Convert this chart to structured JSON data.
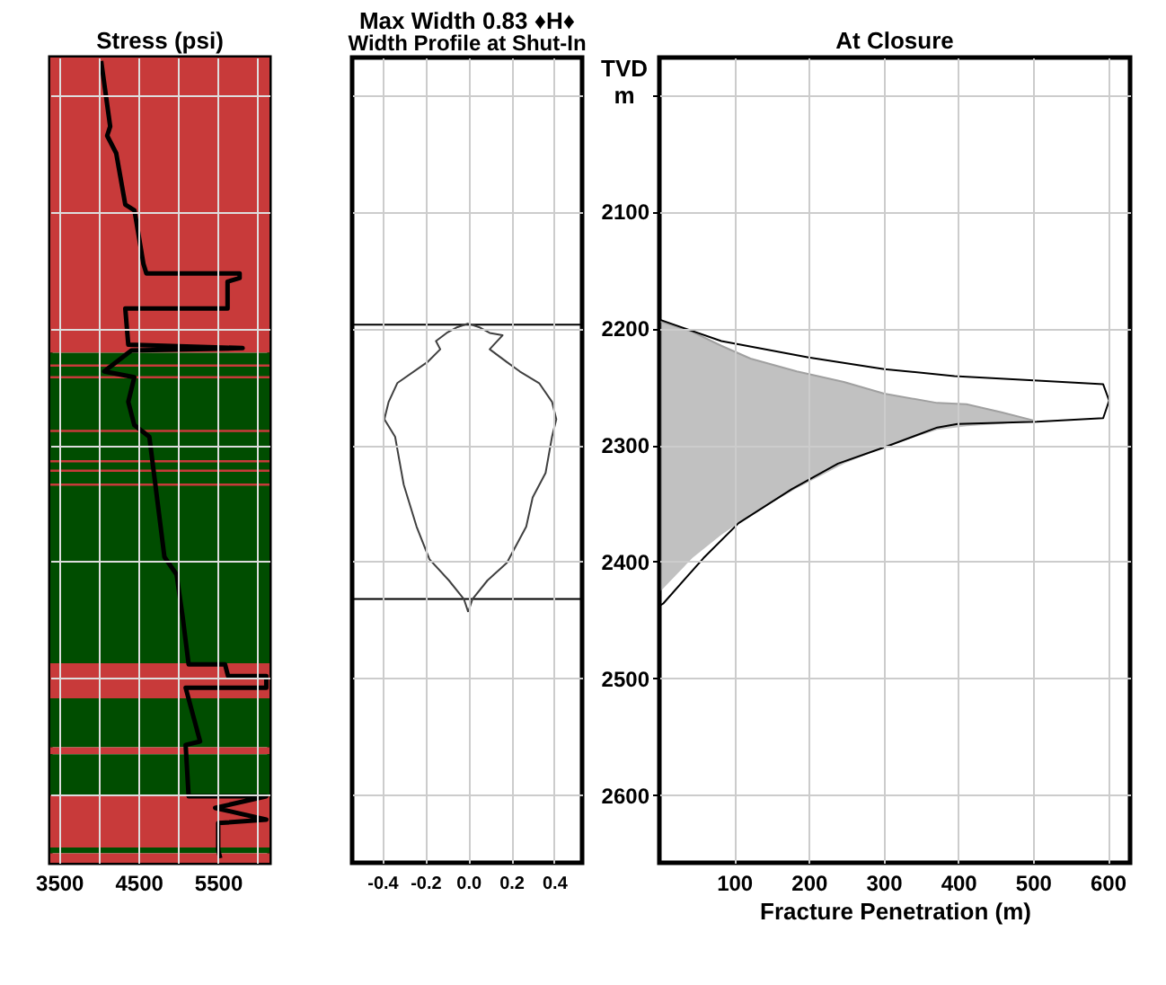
{
  "chart_data": [
    {
      "type": "line",
      "title": "Stress (psi)",
      "xlim": [
        3390,
        6150
      ],
      "xticks": [
        3500,
        {
          "value": 4000,
          "label": null
        },
        4500,
        {
          "value": 5000,
          "label": null
        },
        5500,
        {
          "value": 6000,
          "label": null
        }
      ],
      "ylim": [
        2658,
        1968
      ],
      "yticks": [
        2000,
        2100,
        2200,
        2300,
        2400,
        2500,
        2600
      ],
      "tick_labels": "x",
      "grid": true,
      "bands": [
        {
          "axis": "y",
          "from": 1968,
          "to": 2221,
          "color": "#c83a3a"
        },
        {
          "axis": "y",
          "from": 2221,
          "to": 2487,
          "color": "#004d00"
        },
        {
          "axis": "y",
          "from": 2487,
          "to": 2517,
          "color": "#c83a3a"
        },
        {
          "axis": "y",
          "from": 2517,
          "to": 2559,
          "color": "#004d00"
        },
        {
          "axis": "y",
          "from": 2559,
          "to": 2565,
          "color": "#c83a3a"
        },
        {
          "axis": "y",
          "from": 2565,
          "to": 2600,
          "color": "#004d00"
        },
        {
          "axis": "y",
          "from": 2600,
          "to": 2645,
          "color": "#c83a3a"
        },
        {
          "axis": "y",
          "from": 2645,
          "to": 2650,
          "color": "#004d00"
        },
        {
          "axis": "y",
          "from": 2650,
          "to": 2658,
          "color": "#c83a3a"
        },
        {
          "axis": "y",
          "from": 2231,
          "to": 2233,
          "color": "#c83a3a"
        },
        {
          "axis": "y",
          "from": 2241,
          "to": 2243,
          "color": "#c83a3a"
        },
        {
          "axis": "y",
          "from": 2287,
          "to": 2289,
          "color": "#c83a3a"
        },
        {
          "axis": "y",
          "from": 2313,
          "to": 2315,
          "color": "#c83a3a"
        },
        {
          "axis": "y",
          "from": 2321,
          "to": 2323,
          "color": "#c83a3a"
        },
        {
          "axis": "y",
          "from": 2333,
          "to": 2335,
          "color": "#c83a3a"
        }
      ],
      "series": [
        {
          "color": "#000000",
          "x": [
            4030,
            4144,
            4106,
            4220,
            4334,
            4450,
            4563,
            4600,
            5774,
            5774,
            5622,
            5622,
            4334,
            4372,
            5812,
            4410,
            4068,
            4448,
            4372,
            4448,
            4637,
            4713,
            4827,
            4980,
            5056,
            5132,
            5590,
            5628,
            6110,
            6110,
            5094,
            5276,
            5094,
            5132,
            6110,
            5466,
            6110,
            5504,
            5504,
            5530
          ],
          "values": [
            1971,
            2027,
            2035,
            2050,
            2094,
            2099,
            2145,
            2153,
            2153,
            2157,
            2160,
            2183,
            2183,
            2214,
            2217,
            2219,
            2237,
            2242,
            2263,
            2283,
            2293,
            2334,
            2396,
            2411,
            2447,
            2488,
            2488,
            2498,
            2498,
            2508,
            2508,
            2554,
            2557,
            2601,
            2601,
            2611,
            2621,
            2624,
            2647,
            2654
          ]
        }
      ]
    },
    {
      "type": "line",
      "title": "Max Width 0.83 ♦H♦",
      "subtitle": "Width Profile at Shut-In",
      "xlim": [
        -0.54,
        0.53
      ],
      "xticks": [
        -0.4,
        -0.2,
        {
          "value": 0,
          "label": "0.0"
        },
        0.2,
        0.4
      ],
      "ylim": [
        2658,
        1968
      ],
      "yticks": [
        2000,
        2100,
        2200,
        2300,
        2400,
        2500,
        2600
      ],
      "tick_labels": "x",
      "grid": true,
      "ref_lines": [
        {
          "axis": "y",
          "value": 2197,
          "color": "#000000"
        },
        {
          "axis": "y",
          "value": 2432,
          "color": "#000000"
        }
      ],
      "series": [
        {
          "color": "#404040",
          "x": [
            0,
            0.05,
            0.1,
            0.16,
            0.12,
            0.1,
            0.18,
            0.24,
            0.33,
            0.39,
            0.41,
            0.39,
            0.36,
            0.3,
            0.27,
            0.18,
            0.09,
            0.02,
            0
          ],
          "values": [
            2196,
            2199,
            2204,
            2206,
            2214,
            2218,
            2229,
            2237,
            2247,
            2263,
            2278,
            2293,
            2324,
            2345,
            2370,
            2401,
            2416,
            2432,
            2443
          ]
        },
        {
          "color": "#404040",
          "x": [
            0,
            -0.05,
            -0.1,
            -0.15,
            -0.13,
            -0.19,
            -0.33,
            -0.37,
            -0.39,
            -0.34,
            -0.3,
            -0.24,
            -0.18,
            -0.09,
            -0.02,
            0
          ],
          "values": [
            2196,
            2199,
            2204,
            2211,
            2218,
            2229,
            2247,
            2263,
            2278,
            2293,
            2334,
            2370,
            2398,
            2416,
            2432,
            2443
          ]
        }
      ]
    },
    {
      "type": "line",
      "title": "At Closure",
      "xlabel": "Fracture Penetration (m)",
      "ylabel": "TVD m",
      "xlim": [
        0,
        630
      ],
      "xticks": [
        100,
        200,
        300,
        400,
        500,
        600
      ],
      "ylim": [
        2658,
        1968
      ],
      "yticks": [
        {
          "value": 2000,
          "label": null
        },
        2100,
        2200,
        2300,
        2400,
        2500,
        2600
      ],
      "grid": true,
      "series": [
        {
          "color": "#a0a0a0",
          "x": [
            2,
            44,
            83,
            122,
            184,
            247,
            301,
            372,
            411,
            458,
            501
          ],
          "values": [
            2194,
            2203,
            2215,
            2226,
            2237,
            2246,
            2256,
            2264,
            2265,
            2272,
            2279
          ],
          "lower": [
            2194,
            2203,
            2215,
            2226,
            2237,
            2246,
            2256,
            2264,
            2265,
            2272,
            2279
          ],
          "upper": [
            2425,
            2397,
            2377,
            2360,
            2337,
            2316,
            2302,
            2287,
            2284,
            2282,
            2279
          ]
        },
        {
          "color": "#000000",
          "x": [
            2,
            83,
            200,
            301,
            395,
            512,
            594,
            602,
            594,
            505,
            399,
            372,
            301,
            239,
            177,
            106,
            59,
            5,
            2
          ],
          "values": [
            2193,
            2211,
            2225,
            2235,
            2241,
            2245,
            2248,
            2262,
            2277,
            2280,
            2282,
            2285,
            2302,
            2316,
            2338,
            2367,
            2397,
            2436,
            2437
          ]
        }
      ]
    }
  ]
}
